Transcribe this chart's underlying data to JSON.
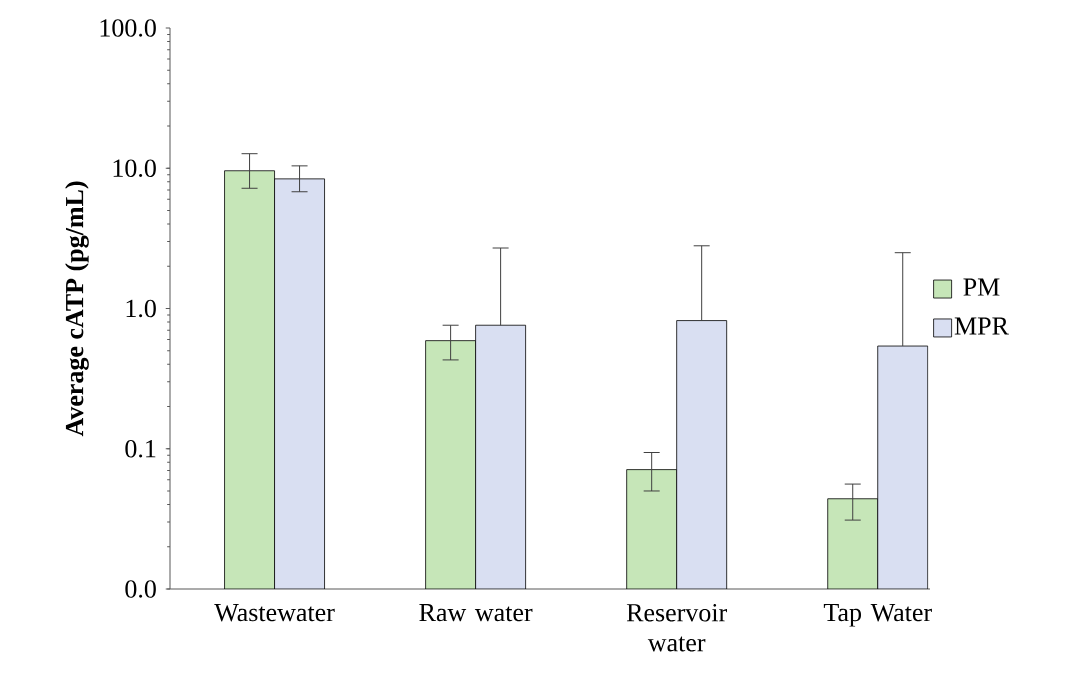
{
  "chart_data": {
    "type": "bar",
    "ylabel": "Average cATP (pg/mL)",
    "categories": [
      "Wastewater",
      "Raw water",
      "Reservoir water",
      "Tap Water"
    ],
    "series": [
      {
        "name": "PM",
        "color": "#c6e6b8",
        "values": [
          9.6,
          0.59,
          0.071,
          0.044
        ],
        "errors": [
          [
            7.2,
            12.7
          ],
          [
            0.43,
            0.76
          ],
          [
            0.05,
            0.094
          ],
          [
            0.031,
            0.056
          ]
        ]
      },
      {
        "name": "MPR",
        "color": "#d9dff2",
        "values": [
          8.4,
          0.76,
          0.82,
          0.54
        ],
        "errors": [
          [
            6.8,
            10.4
          ],
          [
            0.76,
            2.7
          ],
          [
            0.82,
            2.8
          ],
          [
            0.54,
            2.5
          ]
        ]
      }
    ],
    "log": "y",
    "ylim": [
      0.01,
      100
    ],
    "yticks": [
      {
        "value": 0.01,
        "label": "0.0"
      },
      {
        "value": 0.1,
        "label": "0.1"
      },
      {
        "value": 1,
        "label": "1.0"
      },
      {
        "value": 10,
        "label": "10.0"
      },
      {
        "value": 100,
        "label": "100.0"
      }
    ],
    "legend": "right"
  }
}
